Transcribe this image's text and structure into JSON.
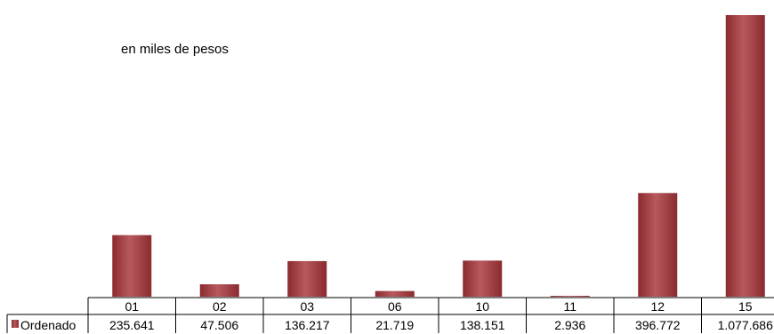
{
  "subtitle": "en miles de pesos",
  "colors": {
    "bar": "#8b2a2f",
    "bar_highlight": "#b65a5e",
    "grid": "#000000",
    "background": "#ffffff"
  },
  "chart_data": {
    "type": "bar",
    "subtitle": "en miles de pesos",
    "categories": [
      "01",
      "02",
      "03",
      "06",
      "10",
      "11",
      "12",
      "15"
    ],
    "series": [
      {
        "name": "Ordenado",
        "values": [
          235641,
          47506,
          136217,
          21719,
          138151,
          2936,
          396772,
          1077686
        ],
        "value_labels": [
          "235.641",
          "47.506",
          "136.217",
          "21.719",
          "138.151",
          "2.936",
          "396.772",
          "1.077.686"
        ]
      }
    ],
    "ylim": [
      0,
      1077686
    ],
    "grid": false,
    "legend": "data-table-left"
  }
}
